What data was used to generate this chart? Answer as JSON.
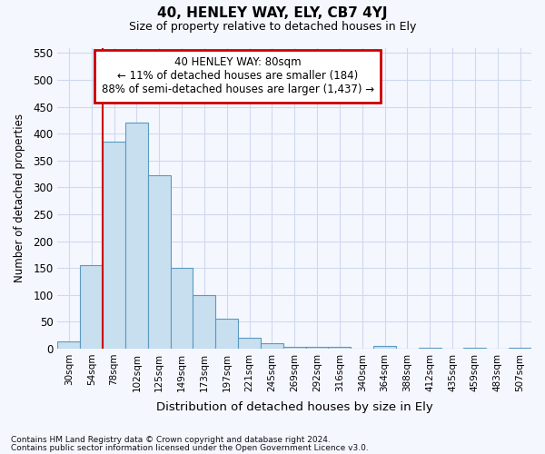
{
  "title": "40, HENLEY WAY, ELY, CB7 4YJ",
  "subtitle": "Size of property relative to detached houses in Ely",
  "xlabel": "Distribution of detached houses by size in Ely",
  "ylabel": "Number of detached properties",
  "bin_labels": [
    "30sqm",
    "54sqm",
    "78sqm",
    "102sqm",
    "125sqm",
    "149sqm",
    "173sqm",
    "197sqm",
    "221sqm",
    "245sqm",
    "269sqm",
    "292sqm",
    "316sqm",
    "340sqm",
    "364sqm",
    "388sqm",
    "412sqm",
    "435sqm",
    "459sqm",
    "483sqm",
    "507sqm"
  ],
  "bar_values": [
    13,
    155,
    385,
    420,
    322,
    150,
    100,
    55,
    20,
    10,
    4,
    4,
    4,
    0,
    5,
    0,
    2,
    0,
    2,
    0,
    2
  ],
  "bar_color": "#c8dff0",
  "bar_edgecolor": "#5a9abf",
  "property_bin_index": 2,
  "annotation_line1": "40 HENLEY WAY: 80sqm",
  "annotation_line2": "← 11% of detached houses are smaller (184)",
  "annotation_line3": "88% of semi-detached houses are larger (1,437) →",
  "annotation_box_edgecolor": "#cc0000",
  "vline_color": "#cc0000",
  "ylim": [
    0,
    560
  ],
  "yticks": [
    0,
    50,
    100,
    150,
    200,
    250,
    300,
    350,
    400,
    450,
    500,
    550
  ],
  "footnote1": "Contains HM Land Registry data © Crown copyright and database right 2024.",
  "footnote2": "Contains public sector information licensed under the Open Government Licence v3.0.",
  "bg_color": "#f5f7ff",
  "plot_bg_color": "#f5f7ff",
  "grid_color": "#d0d8ee"
}
